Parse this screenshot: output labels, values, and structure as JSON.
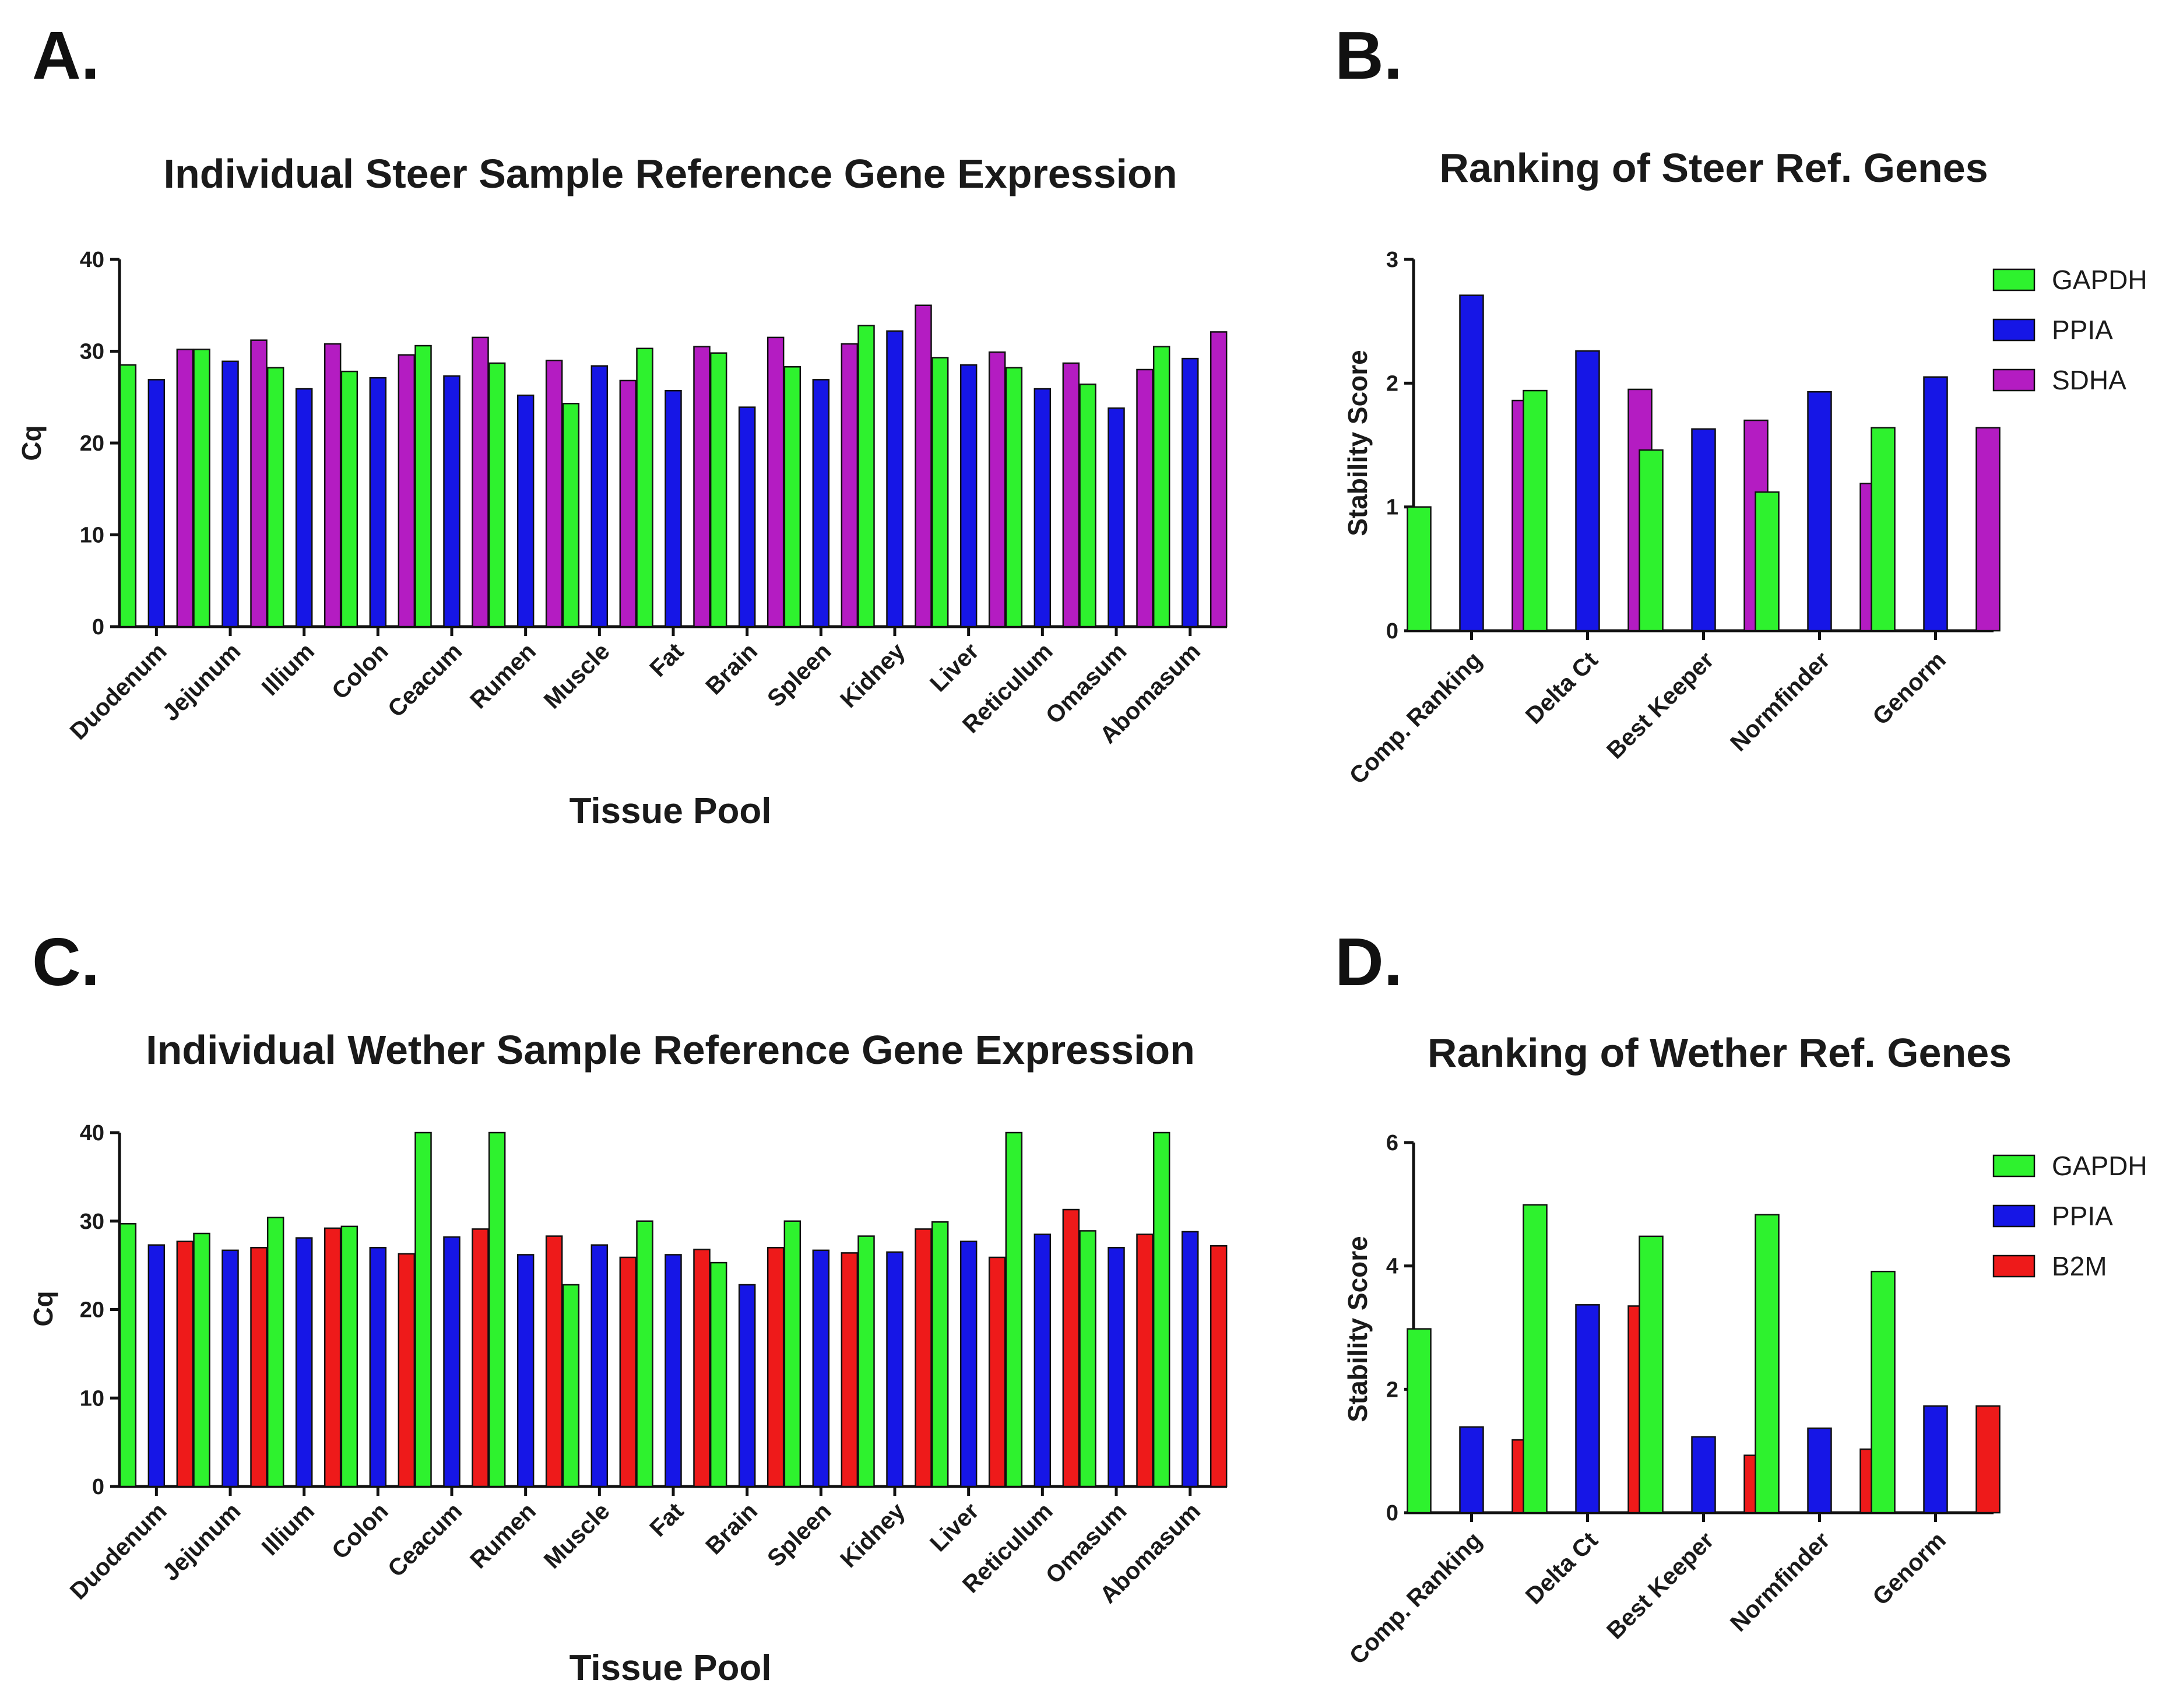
{
  "chart_data": [
    {
      "panel": "A.",
      "type": "bar",
      "title": "Individual Steer Sample Reference Gene Expression",
      "xlabel": "Tissue Pool",
      "ylabel": "Cq",
      "ylim": [
        0,
        40
      ],
      "yticks": [
        0,
        10,
        20,
        30,
        40
      ],
      "categories": [
        "Duodenum",
        "Jejunum",
        "Illium",
        "Colon",
        "Ceacum",
        "Rumen",
        "Muscle",
        "Fat",
        "Brain",
        "Spleen",
        "Kidney",
        "Liver",
        "Reticulum",
        "Omasum",
        "Abomasum"
      ],
      "series": [
        {
          "name": "GAPDH",
          "color": "#2ef22e",
          "values": [
            28.5,
            30.2,
            28.2,
            27.8,
            30.6,
            28.7,
            24.3,
            30.3,
            29.8,
            28.3,
            32.8,
            29.3,
            28.2,
            26.4,
            30.5
          ]
        },
        {
          "name": "PPIA",
          "color": "#1616e6",
          "values": [
            26.9,
            28.9,
            25.9,
            27.1,
            27.3,
            25.2,
            28.4,
            25.7,
            23.9,
            26.9,
            32.2,
            28.5,
            25.9,
            23.8,
            29.2
          ]
        },
        {
          "name": "SDHA",
          "color": "#b41cc2",
          "values": [
            30.2,
            31.2,
            30.8,
            29.6,
            31.5,
            29.0,
            26.8,
            30.5,
            31.5,
            30.8,
            35.0,
            29.9,
            28.7,
            28.0,
            32.1
          ]
        }
      ],
      "legend": "none"
    },
    {
      "panel": "B.",
      "type": "bar",
      "title": "Ranking of Steer Ref. Genes",
      "xlabel": "",
      "ylabel": "Stability Score",
      "ylim": [
        0,
        3
      ],
      "yticks": [
        0,
        1,
        2,
        3
      ],
      "categories": [
        "Comp. Ranking",
        "Delta Ct",
        "Best Keeper",
        "Normfinder",
        "Genorm"
      ],
      "series": [
        {
          "name": "GAPDH",
          "color": "#2ef22e",
          "values": [
            1.0,
            1.94,
            1.46,
            1.12,
            1.64
          ]
        },
        {
          "name": "PPIA",
          "color": "#1616e6",
          "values": [
            2.71,
            2.26,
            1.63,
            1.93,
            2.05
          ]
        },
        {
          "name": "SDHA",
          "color": "#b41cc2",
          "values": [
            1.86,
            1.95,
            1.7,
            1.19,
            1.64
          ]
        }
      ],
      "legend": "top-right"
    },
    {
      "panel": "C.",
      "type": "bar",
      "title": "Individual Wether Sample Reference Gene Expression",
      "xlabel": "Tissue Pool",
      "ylabel": "Cq",
      "ylim": [
        0,
        40
      ],
      "yticks": [
        0,
        10,
        20,
        30,
        40
      ],
      "categories": [
        "Duodenum",
        "Jejunum",
        "Illium",
        "Colon",
        "Ceacum",
        "Rumen",
        "Muscle",
        "Fat",
        "Brain",
        "Spleen",
        "Kidney",
        "Liver",
        "Reticulum",
        "Omasum",
        "Abomasum"
      ],
      "series": [
        {
          "name": "GAPDH",
          "color": "#2ef22e",
          "values": [
            29.7,
            28.6,
            30.4,
            29.4,
            40.0,
            40.0,
            22.8,
            30.0,
            25.3,
            30.0,
            28.3,
            29.9,
            40.0,
            28.9,
            40.0
          ]
        },
        {
          "name": "PPIA",
          "color": "#1616e6",
          "values": [
            27.3,
            26.7,
            28.1,
            27.0,
            28.2,
            26.2,
            27.3,
            26.2,
            22.8,
            26.7,
            26.5,
            27.7,
            28.5,
            27.0,
            28.8
          ]
        },
        {
          "name": "B2M",
          "color": "#ee1a1a",
          "values": [
            27.7,
            27.0,
            29.2,
            26.3,
            29.1,
            28.3,
            25.9,
            26.8,
            27.0,
            26.4,
            29.1,
            25.9,
            31.3,
            28.5,
            27.2
          ]
        }
      ],
      "legend": "none"
    },
    {
      "panel": "D.",
      "type": "bar",
      "title": "Ranking of Wether Ref. Genes",
      "xlabel": "",
      "ylabel": "Stability Score",
      "ylim": [
        0,
        6
      ],
      "yticks": [
        0,
        2,
        4,
        6
      ],
      "categories": [
        "Comp. Ranking",
        "Delta Ct",
        "Best Keeper",
        "Normfinder",
        "Genorm"
      ],
      "series": [
        {
          "name": "GAPDH",
          "color": "#2ef22e",
          "values": [
            2.98,
            4.99,
            4.48,
            4.83,
            3.91
          ]
        },
        {
          "name": "PPIA",
          "color": "#1616e6",
          "values": [
            1.39,
            3.37,
            1.23,
            1.37,
            1.73
          ]
        },
        {
          "name": "B2M",
          "color": "#ee1a1a",
          "values": [
            1.18,
            3.35,
            0.93,
            1.03,
            1.73
          ]
        }
      ],
      "legend": "top-right"
    }
  ]
}
